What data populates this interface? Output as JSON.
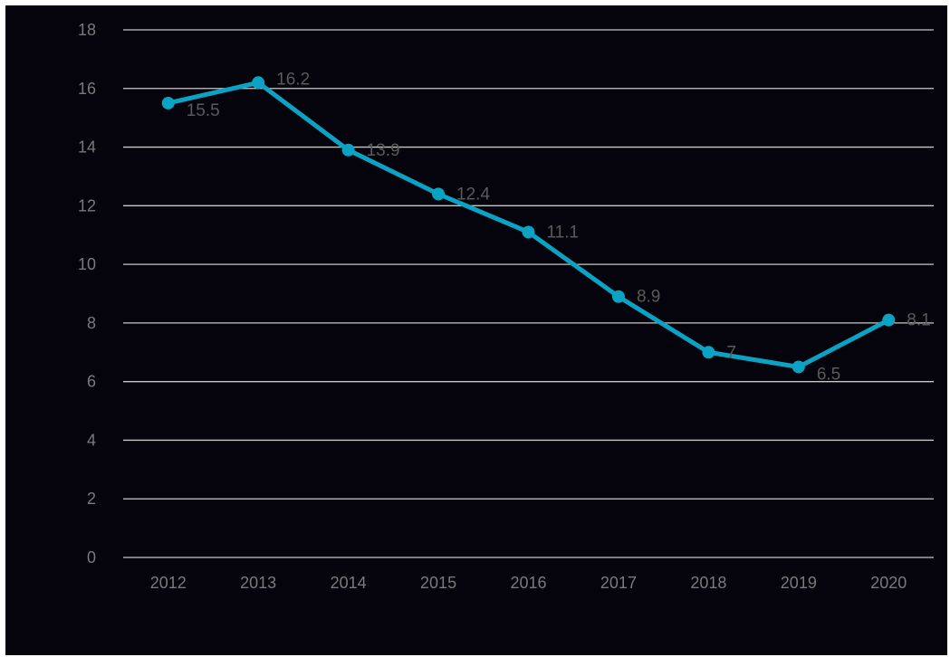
{
  "chart_data": {
    "type": "line",
    "title": "",
    "xlabel": "",
    "ylabel": "",
    "categories": [
      "2012",
      "2013",
      "2014",
      "2015",
      "2016",
      "2017",
      "2018",
      "2019",
      "2020"
    ],
    "series": [
      {
        "values": [
          15.5,
          16.2,
          13.9,
          12.4,
          11.1,
          8.9,
          7,
          6.5,
          8.1
        ],
        "color": "#0aa3c4"
      }
    ],
    "data_labels": [
      "15.5",
      "16.2",
      "13.9",
      "12.4",
      "11.1",
      "8.9",
      "7",
      "6.5",
      "8.1"
    ],
    "ylim": [
      0,
      18
    ],
    "yticks": [
      "0",
      "2",
      "4",
      "6",
      "8",
      "10",
      "12",
      "14",
      "16",
      "18"
    ],
    "grid": true,
    "legend": "none",
    "background": "#05040c"
  }
}
